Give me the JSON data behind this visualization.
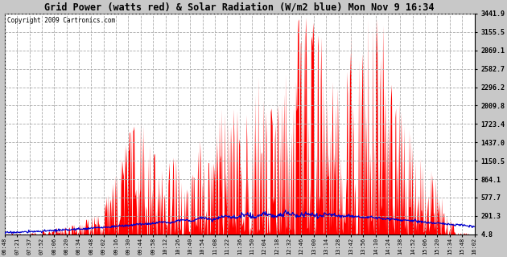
{
  "title_full": "Grid Power (watts red) & Solar Radiation (W/m2 blue) Mon Nov 9 16:34",
  "copyright_text": "Copyright 2009 Cartronics.com",
  "bg_color": "#c8c8c8",
  "plot_bg_color": "#ffffff",
  "red_fill_color": "#ff0000",
  "blue_line_color": "#0000cc",
  "grid_color": "#aaaaaa",
  "right_axis_ticks": [
    4.8,
    291.3,
    577.7,
    864.1,
    1150.5,
    1437.0,
    1723.4,
    2009.8,
    2296.2,
    2582.7,
    2869.1,
    3155.5,
    3441.9
  ],
  "x_labels": [
    "06:48",
    "07:21",
    "07:37",
    "07:52",
    "08:06",
    "08:20",
    "08:34",
    "08:48",
    "09:02",
    "09:16",
    "09:30",
    "09:44",
    "09:58",
    "10:12",
    "10:26",
    "10:40",
    "10:54",
    "11:08",
    "11:22",
    "11:36",
    "11:50",
    "12:04",
    "12:18",
    "12:32",
    "12:46",
    "13:00",
    "13:14",
    "13:28",
    "13:42",
    "13:56",
    "14:10",
    "14:24",
    "14:38",
    "14:52",
    "15:06",
    "15:20",
    "15:34",
    "15:48",
    "16:02"
  ],
  "ymax": 3441.9,
  "ymin": 4.8,
  "solar_peak_axis_value": 310,
  "n_points": 800
}
